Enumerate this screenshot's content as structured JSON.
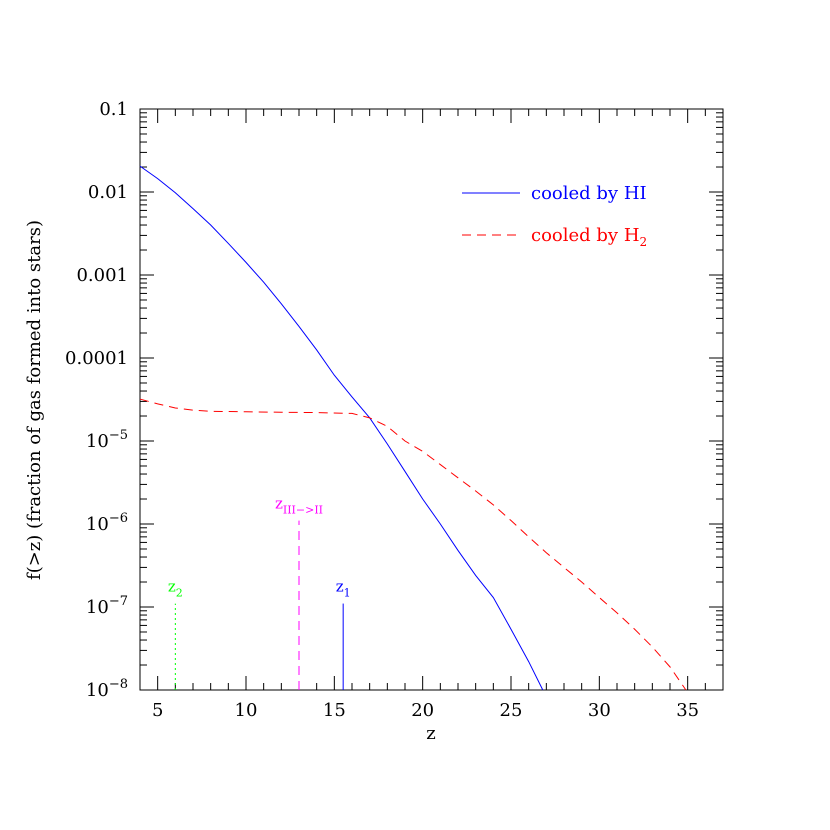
{
  "chart_data": {
    "type": "line",
    "title": "",
    "xlabel": "z",
    "ylabel": "f(>z) (fraction of gas formed into stars)",
    "xlim": [
      4,
      37
    ],
    "ylim": [
      1e-08,
      0.1
    ],
    "yscale": "log",
    "grid": false,
    "legend_position": "top-right",
    "x_ticks": [
      5,
      10,
      15,
      20,
      25,
      30,
      35
    ],
    "y_ticks": [
      {
        "value": 0.1,
        "label": "0.1"
      },
      {
        "value": 0.01,
        "label": "0.01"
      },
      {
        "value": 0.001,
        "label": "0.001"
      },
      {
        "value": 0.0001,
        "label": "0.0001"
      },
      {
        "value": 1e-05,
        "base": "10",
        "exp": "−5"
      },
      {
        "value": 1e-06,
        "base": "10",
        "exp": "−6"
      },
      {
        "value": 1e-07,
        "base": "10",
        "exp": "−7"
      },
      {
        "value": 1e-08,
        "base": "10",
        "exp": "−8"
      }
    ],
    "series": [
      {
        "name": "cooled by HI",
        "name_main": "cooled by HI",
        "name_sub": "",
        "color": "#0000ff",
        "dash": "solid",
        "points": [
          [
            4,
            0.0205
          ],
          [
            5,
            0.0145
          ],
          [
            6,
            0.0098
          ],
          [
            7,
            0.0063
          ],
          [
            8,
            0.004
          ],
          [
            9,
            0.0024
          ],
          [
            10,
            0.00142
          ],
          [
            11,
            0.00082
          ],
          [
            12,
            0.00045
          ],
          [
            13,
            0.00024
          ],
          [
            14,
            0.000125
          ],
          [
            15,
            6.2e-05
          ],
          [
            16,
            3.4e-05
          ],
          [
            17,
            1.9e-05
          ],
          [
            18,
            9.2e-06
          ],
          [
            19,
            4.3e-06
          ],
          [
            20,
            2e-06
          ],
          [
            21,
            1e-06
          ],
          [
            22,
            4.8e-07
          ],
          [
            23,
            2.4e-07
          ],
          [
            24,
            1.3e-07
          ],
          [
            25,
            5.4e-08
          ],
          [
            26,
            2.2e-08
          ],
          [
            26.8,
            1e-08
          ]
        ]
      },
      {
        "name": "cooled by H2",
        "name_main": "cooled by H",
        "name_sub": "2",
        "color": "#ff0000",
        "dash": "dashed",
        "points": [
          [
            4,
            3.2e-05
          ],
          [
            5,
            2.8e-05
          ],
          [
            6,
            2.5e-05
          ],
          [
            7,
            2.35e-05
          ],
          [
            8,
            2.28e-05
          ],
          [
            10,
            2.25e-05
          ],
          [
            12,
            2.22e-05
          ],
          [
            14,
            2.2e-05
          ],
          [
            16,
            2.15e-05
          ],
          [
            17,
            1.9e-05
          ],
          [
            18,
            1.5e-05
          ],
          [
            19,
            1e-05
          ],
          [
            20,
            7.5e-06
          ],
          [
            21,
            5.2e-06
          ],
          [
            22,
            3.6e-06
          ],
          [
            23,
            2.5e-06
          ],
          [
            24,
            1.7e-06
          ],
          [
            25,
            1.1e-06
          ],
          [
            26,
            7e-07
          ],
          [
            27,
            4.5e-07
          ],
          [
            28,
            3e-07
          ],
          [
            29,
            2e-07
          ],
          [
            30,
            1.3e-07
          ],
          [
            31,
            8.5e-08
          ],
          [
            32,
            5.4e-08
          ],
          [
            33,
            3.3e-08
          ],
          [
            34,
            1.9e-08
          ],
          [
            34.9,
            1e-08
          ]
        ]
      }
    ],
    "markers": [
      {
        "label_main": "z",
        "label_sub": "2",
        "x": 6.0,
        "top": 1.1e-07,
        "color": "#00ff00",
        "dash": "dotted"
      },
      {
        "label_main": "z",
        "label_sub": "III−>II",
        "x": 13.0,
        "top": 1.1e-06,
        "color": "#ff00ff",
        "dash": "dashed"
      },
      {
        "label_main": "z",
        "label_sub": "1",
        "x": 15.5,
        "top": 1.1e-07,
        "color": "#0000ff",
        "dash": "solid"
      }
    ]
  }
}
